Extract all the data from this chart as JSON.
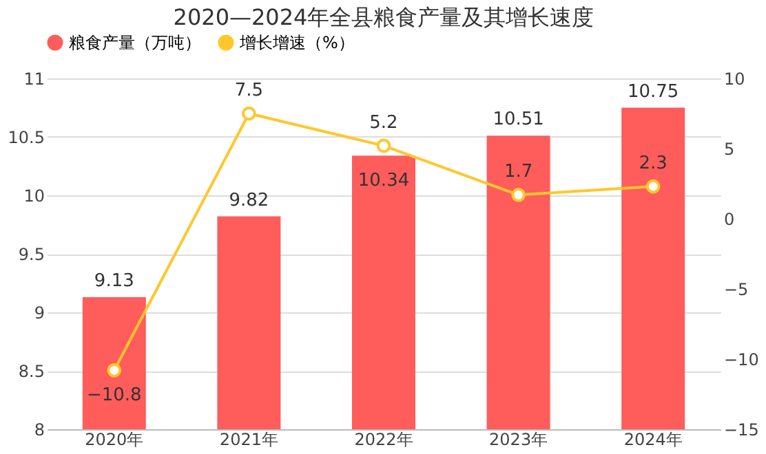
{
  "chart_data": {
    "type": "bar",
    "title": "2020—2024年全县粮食产量及其增长速度",
    "categories": [
      "2020年",
      "2021年",
      "2022年",
      "2023年",
      "2024年"
    ],
    "series": [
      {
        "name": "粮食产量（万吨）",
        "color": "#ff5c5c",
        "values": [
          9.13,
          9.82,
          10.34,
          10.51,
          10.75
        ]
      },
      {
        "name": "增长增速（%）",
        "type": "line",
        "axis": "y2",
        "color": "#ffc72c",
        "marker": "circle",
        "values": [
          -10.8,
          7.5,
          5.2,
          1.7,
          2.3
        ]
      }
    ],
    "ylim": [
      8,
      11
    ],
    "yticks": [
      8,
      8.5,
      9,
      9.5,
      10,
      10.5,
      11
    ],
    "y2lim": [
      -15,
      10
    ],
    "y2ticks": [
      -15,
      -10,
      -5,
      0,
      5,
      10
    ],
    "grid": "y",
    "legend": "top",
    "data_labels": true
  }
}
